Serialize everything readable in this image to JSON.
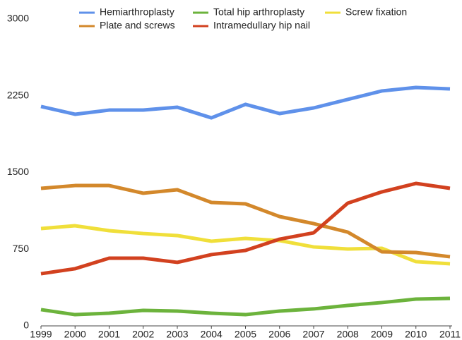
{
  "chart_data": {
    "type": "line",
    "categories": [
      "1999",
      "2000",
      "2001",
      "2002",
      "2003",
      "2004",
      "2005",
      "2006",
      "2007",
      "2008",
      "2009",
      "2010",
      "2011"
    ],
    "series": [
      {
        "name": "Hemiarthroplasty",
        "color": "#5f91ea",
        "values": [
          2145,
          2069,
          2110,
          2110,
          2138,
          2034,
          2166,
          2076,
          2131,
          2214,
          2297,
          2331,
          2317
        ]
      },
      {
        "name": "Total hip arthroplasty",
        "color": "#6cb33c",
        "values": [
          159,
          110,
          124,
          152,
          145,
          124,
          110,
          145,
          166,
          200,
          228,
          262,
          269
        ]
      },
      {
        "name": "Screw fixation",
        "color": "#f0df3a",
        "values": [
          952,
          979,
          931,
          903,
          883,
          828,
          855,
          834,
          772,
          752,
          759,
          628,
          607
        ]
      },
      {
        "name": "Plate and screws",
        "color": "#d3882b",
        "values": [
          1345,
          1372,
          1372,
          1297,
          1331,
          1207,
          1193,
          1069,
          1000,
          917,
          724,
          717,
          676
        ]
      },
      {
        "name": "Intramedullary hip nail",
        "color": "#d2411f",
        "values": [
          510,
          559,
          662,
          662,
          621,
          697,
          738,
          848,
          910,
          1200,
          1310,
          1393,
          1345
        ]
      }
    ],
    "ylim": [
      0,
      3000
    ],
    "yticks": [
      0,
      750,
      1500,
      2250,
      3000
    ],
    "grid": false,
    "legend": "top"
  }
}
